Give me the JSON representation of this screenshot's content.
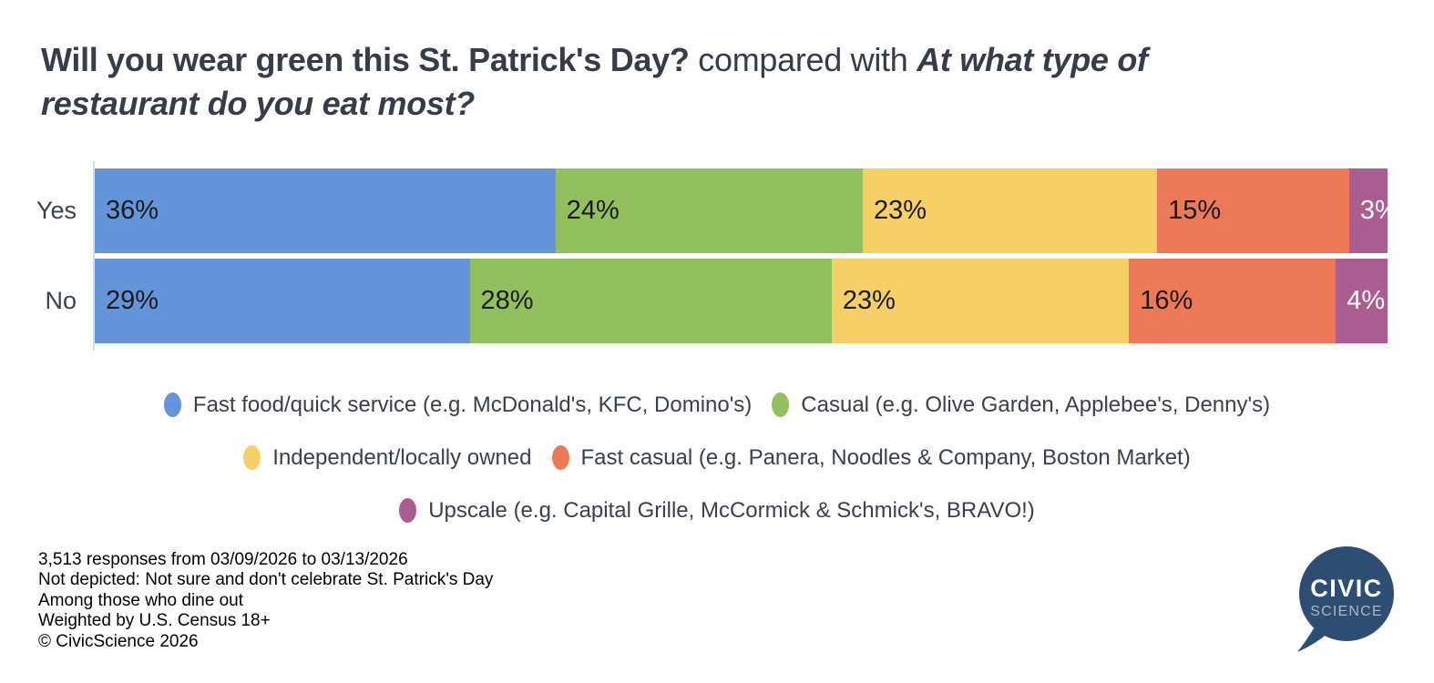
{
  "title": {
    "question1": "Will you wear green this St. Patrick's Day?",
    "connector": " compared with ",
    "question2": "At what type of restaurant do you eat most?"
  },
  "chart_data": {
    "type": "bar",
    "variant": "horizontal-stacked",
    "unit": "%",
    "categories": [
      "Yes",
      "No"
    ],
    "series": [
      {
        "name": "Fast food/quick service (e.g. McDonald's, KFC, Domino's)",
        "color": "#6494da",
        "label_color": "#1b1b1b",
        "values": [
          36,
          29
        ]
      },
      {
        "name": "Casual (e.g. Olive Garden, Applebee's, Denny's)",
        "color": "#92c05e",
        "label_color": "#1b1b1b",
        "values": [
          24,
          28
        ]
      },
      {
        "name": "Independent/locally owned",
        "color": "#f6cf67",
        "label_color": "#1b1b1b",
        "values": [
          23,
          23
        ]
      },
      {
        "name": "Fast casual (e.g. Panera, Noodles & Company, Boston Market)",
        "color": "#ec7a59",
        "label_color": "#1b1b1b",
        "values": [
          15,
          16
        ]
      },
      {
        "name": "Upscale (e.g. Capital Grille, McCormick & Schmick's, BRAVO!)",
        "color": "#a95d90",
        "label_color": "#ffffff",
        "values": [
          3,
          4
        ]
      }
    ],
    "legend_rows": [
      [
        0,
        1
      ],
      [
        2,
        3
      ],
      [
        4
      ]
    ],
    "legend_position": "bottom",
    "axis_baseline_color": "#d9dbde",
    "xlim": [
      0,
      100
    ],
    "grid": false
  },
  "footer": {
    "lines": [
      "3,513 responses from 03/09/2026 to 03/13/2026",
      "Not depicted: Not sure and don't celebrate St. Patrick's Day",
      "Among those who dine out",
      "Weighted by U.S. Census 18+",
      "© CivicScience 2026"
    ]
  },
  "logo": {
    "line1": "CIVIC",
    "line2": "SCIENCE",
    "bubble_color": "#2d4d72",
    "line1_color": "#ffffff",
    "line2_color": "#aab8c8"
  }
}
